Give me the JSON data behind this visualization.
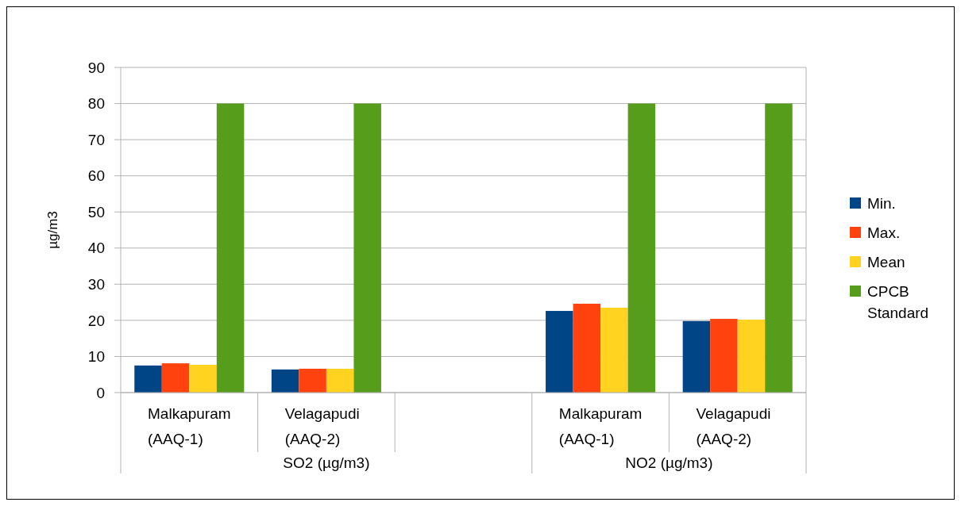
{
  "chart_data": {
    "type": "bar",
    "categories": [
      "Malkapuram (AAQ-1)",
      "Velagapudi (AAQ-2)",
      null,
      "Malkapuram (AAQ-1)",
      "Velagapudi (AAQ-2)"
    ],
    "series": [
      {
        "name": "Min.",
        "color": "#004586",
        "values": [
          7.5,
          6.4,
          null,
          22.6,
          19.8
        ]
      },
      {
        "name": "Max.",
        "color": "#ff420e",
        "values": [
          8.1,
          6.6,
          null,
          24.6,
          20.4
        ]
      },
      {
        "name": "Mean",
        "color": "#ffd320",
        "values": [
          7.7,
          6.6,
          null,
          23.5,
          20.2
        ]
      },
      {
        "name": "CPCB Standard",
        "color": "#579d1c",
        "values": [
          80,
          80,
          null,
          80,
          80
        ]
      }
    ],
    "ylabel": "µg/m3",
    "ylim": [
      0,
      90
    ],
    "yticks": [
      0,
      10,
      20,
      30,
      40,
      50,
      60,
      70,
      80,
      90
    ],
    "grid": "y",
    "legend": "right",
    "annotations": [
      "SO2 (µg/m3)",
      "NO2 (µg/m3)"
    ]
  }
}
